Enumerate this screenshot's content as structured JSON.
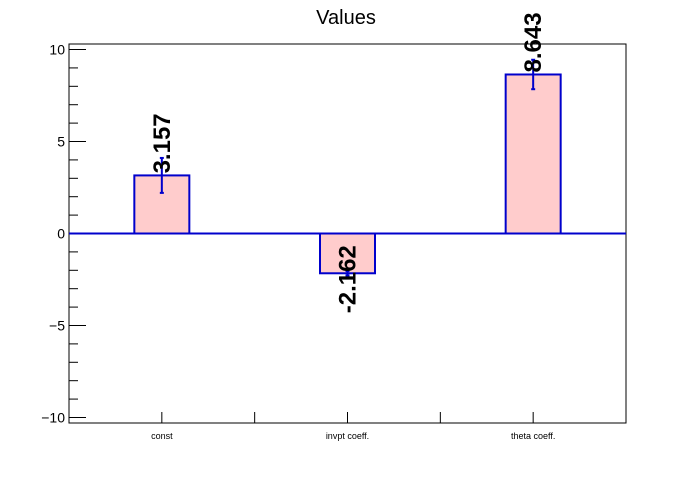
{
  "chart_data": {
    "type": "bar",
    "title": "Values",
    "xlabel": "",
    "ylabel": "",
    "categories": [
      "const",
      "invpt coeff.",
      "theta coeff."
    ],
    "values": [
      3.157,
      -2.162,
      8.643
    ],
    "value_labels": [
      "3.157",
      "-2.162",
      "8.643"
    ],
    "errors": [
      0.95,
      0.12,
      0.8
    ],
    "ylim": [
      -10.3,
      10.3
    ],
    "y_ticks": [
      -10,
      -5,
      0,
      5,
      10
    ],
    "y_tick_labels": [
      "−10",
      "−5",
      "0",
      "5",
      "10"
    ],
    "grid": false,
    "legend": "none",
    "colors": {
      "bar_fill": "#ffcccc",
      "bar_edge": "#0000cc",
      "zero_line": "#0000cc",
      "error_bar": "#0000cc",
      "axis": "#000000",
      "label_text": "#000000"
    }
  }
}
